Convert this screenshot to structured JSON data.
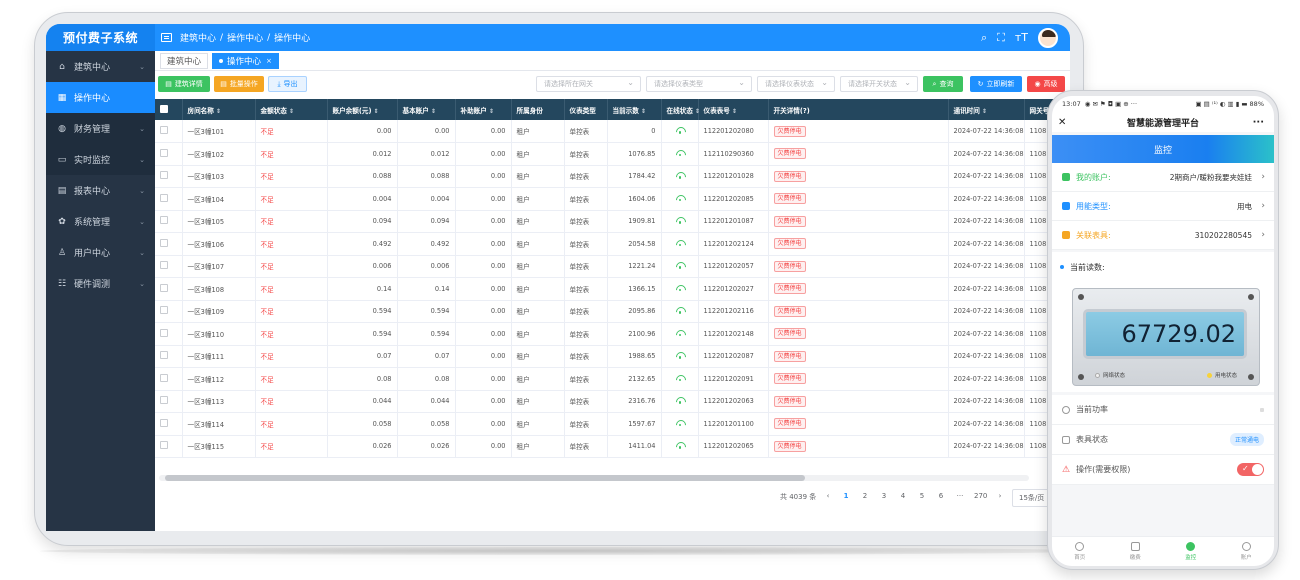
{
  "web": {
    "brand": "预付费子系统",
    "breadcrumb": [
      "建筑中心",
      "/",
      "操作中心",
      "/",
      "操作中心"
    ],
    "sidebar": [
      {
        "label": "建筑中心",
        "icon": "home-icon"
      },
      {
        "label": "操作中心",
        "icon": "grid-icon"
      },
      {
        "label": "财务管理",
        "icon": "finance-icon"
      },
      {
        "label": "实时监控",
        "icon": "monitor-icon"
      },
      {
        "label": "报表中心",
        "icon": "report-icon"
      },
      {
        "label": "系统管理",
        "icon": "gear-icon"
      },
      {
        "label": "用户中心",
        "icon": "user-icon"
      },
      {
        "label": "硬件调测",
        "icon": "hardware-icon"
      }
    ],
    "tabs": [
      {
        "label": "建筑中心"
      },
      {
        "label": "操作中心",
        "close": "×"
      }
    ],
    "toolbar": {
      "building_detail": "建筑详情",
      "batch_op": "批量操作",
      "export": "导出",
      "gateway_placeholder": "请选择所在网关",
      "meter_type_placeholder": "请选择仪表类型",
      "meter_status_placeholder": "请选择仪表状态",
      "switch_status_placeholder": "请选择开关状态",
      "search": "查询",
      "refresh": "立即刷新",
      "advanced": "高级"
    },
    "table": {
      "headers": [
        "房间名称",
        "金额状态",
        "账户余额(元)",
        "基本账户",
        "补助账户",
        "所属身份",
        "仪表类型",
        "当前示数",
        "在线状态",
        "仪表表号",
        "开关详情(?)",
        "通讯时间",
        "网关号"
      ],
      "rows": [
        [
          "一区3幢101",
          "不足",
          "0.00",
          "0.00",
          "0.00",
          "租户",
          "单控表",
          "0",
          "112201202080",
          "欠费停电",
          "2024-07-22 14:36:08",
          "1108"
        ],
        [
          "一区3幢102",
          "不足",
          "0.012",
          "0.012",
          "0.00",
          "租户",
          "单控表",
          "1076.85",
          "112110290360",
          "欠费停电",
          "2024-07-22 14:36:08",
          "1108"
        ],
        [
          "一区3幢103",
          "不足",
          "0.088",
          "0.088",
          "0.00",
          "租户",
          "单控表",
          "1784.42",
          "112201201028",
          "欠费停电",
          "2024-07-22 14:36:08",
          "1108"
        ],
        [
          "一区3幢104",
          "不足",
          "0.004",
          "0.004",
          "0.00",
          "租户",
          "单控表",
          "1604.06",
          "112201202085",
          "欠费停电",
          "2024-07-22 14:36:08",
          "1108"
        ],
        [
          "一区3幢105",
          "不足",
          "0.094",
          "0.094",
          "0.00",
          "租户",
          "单控表",
          "1909.81",
          "112201201087",
          "欠费停电",
          "2024-07-22 14:36:08",
          "1108"
        ],
        [
          "一区3幢106",
          "不足",
          "0.492",
          "0.492",
          "0.00",
          "租户",
          "单控表",
          "2054.58",
          "112201202124",
          "欠费停电",
          "2024-07-22 14:36:08",
          "1108"
        ],
        [
          "一区3幢107",
          "不足",
          "0.006",
          "0.006",
          "0.00",
          "租户",
          "单控表",
          "1221.24",
          "112201202057",
          "欠费停电",
          "2024-07-22 14:36:08",
          "1108"
        ],
        [
          "一区3幢108",
          "不足",
          "0.14",
          "0.14",
          "0.00",
          "租户",
          "单控表",
          "1366.15",
          "112201202027",
          "欠费停电",
          "2024-07-22 14:36:08",
          "1108"
        ],
        [
          "一区3幢109",
          "不足",
          "0.594",
          "0.594",
          "0.00",
          "租户",
          "单控表",
          "2095.86",
          "112201202116",
          "欠费停电",
          "2024-07-22 14:36:08",
          "1108"
        ],
        [
          "一区3幢110",
          "不足",
          "0.594",
          "0.594",
          "0.00",
          "租户",
          "单控表",
          "2100.96",
          "112201202148",
          "欠费停电",
          "2024-07-22 14:36:08",
          "1108"
        ],
        [
          "一区3幢111",
          "不足",
          "0.07",
          "0.07",
          "0.00",
          "租户",
          "单控表",
          "1988.65",
          "112201202087",
          "欠费停电",
          "2024-07-22 14:36:08",
          "1108"
        ],
        [
          "一区3幢112",
          "不足",
          "0.08",
          "0.08",
          "0.00",
          "租户",
          "单控表",
          "2132.65",
          "112201202091",
          "欠费停电",
          "2024-07-22 14:36:08",
          "1108"
        ],
        [
          "一区3幢113",
          "不足",
          "0.044",
          "0.044",
          "0.00",
          "租户",
          "单控表",
          "2316.76",
          "112201202063",
          "欠费停电",
          "2024-07-22 14:36:08",
          "1108"
        ],
        [
          "一区3幢114",
          "不足",
          "0.058",
          "0.058",
          "0.00",
          "租户",
          "单控表",
          "1597.67",
          "112201201100",
          "欠费停电",
          "2024-07-22 14:36:08",
          "1108"
        ],
        [
          "一区3幢115",
          "不足",
          "0.026",
          "0.026",
          "0.00",
          "租户",
          "单控表",
          "1411.04",
          "112201202065",
          "欠费停电",
          "2024-07-22 14:36:08",
          "1108"
        ]
      ]
    },
    "pager": {
      "total": "共 4039 条",
      "prev": "‹",
      "pages": [
        "1",
        "2",
        "3",
        "4",
        "5",
        "6"
      ],
      "ellipsis": "···",
      "last": "270",
      "next": "›",
      "size": "15条/页"
    }
  },
  "phone": {
    "time": "13:07",
    "status_icons": "◉ ✉ ⚑ ◘ ▣ ⊕ ···",
    "status_right": "▣ ▤ ⁽¹⁾ ◐ ▥ ▮ ▬ 88%",
    "title": "智慧能源管理平台",
    "close": "✕",
    "more": "···",
    "banner": "监控",
    "rows": [
      {
        "label": "我的账户:",
        "value": "2期商户/暖粉我要夹娃娃",
        "color": "#3cc361"
      },
      {
        "label": "用能类型:",
        "value": "用电",
        "color": "#1e90ff"
      },
      {
        "label": "关联表具:",
        "value": "310202280545",
        "color": "#f5a623"
      }
    ],
    "reading_label": "当前读数:",
    "meter_value": "67729.02",
    "network_status": "网络状态",
    "power_status": "用电状态",
    "power_label": "当前功率",
    "meter_status_label": "表具状态",
    "meter_status_badge": "正常通电",
    "operation_label": "操作(需要权限)",
    "bottom_tabs": [
      "首页",
      "缴费",
      "监控",
      "账户"
    ]
  },
  "colors": {
    "primary": "#1e90ff",
    "sidebar_bg": "#263445",
    "table_header": "#24475e",
    "danger": "#f44848",
    "success": "#3cc361",
    "warning": "#f5a623"
  }
}
